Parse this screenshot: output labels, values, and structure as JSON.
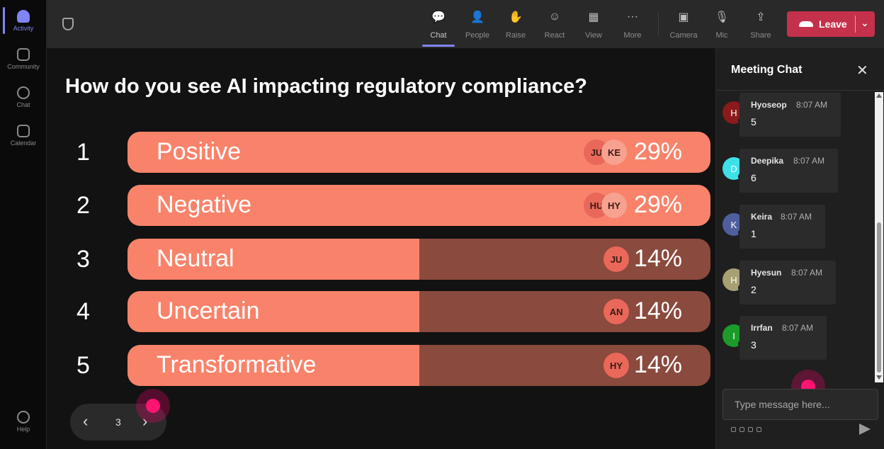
{
  "rail": {
    "items": [
      {
        "label": "Activity",
        "icon": "bell-icon"
      },
      {
        "label": "Community",
        "icon": "community-icon"
      },
      {
        "label": "Chat",
        "icon": "chat-icon"
      },
      {
        "label": "Calendar",
        "icon": "calendar-icon"
      }
    ],
    "help": {
      "label": "Help",
      "icon": "help-icon"
    }
  },
  "toolbar": {
    "buttons": [
      {
        "label": "Chat",
        "icon": "chat-icon",
        "glyph": "💬"
      },
      {
        "label": "People",
        "icon": "people-icon",
        "glyph": "👤"
      },
      {
        "label": "Raise",
        "icon": "raise-hand-icon",
        "glyph": "✋"
      },
      {
        "label": "React",
        "icon": "react-icon",
        "glyph": "☺"
      },
      {
        "label": "View",
        "icon": "view-grid-icon",
        "glyph": "▦"
      },
      {
        "label": "More",
        "icon": "more-icon",
        "glyph": "···"
      },
      {
        "label": "Camera",
        "icon": "camera-off-icon",
        "glyph": "▣"
      },
      {
        "label": "Mic",
        "icon": "mic-icon",
        "glyph": "🎙"
      },
      {
        "label": "Share",
        "icon": "share-icon",
        "glyph": "⇪"
      }
    ],
    "leave_label": "Leave"
  },
  "poll": {
    "question": "How do you see AI impacting regulatory compliance?",
    "options": [
      {
        "num": "1",
        "label": "Positive",
        "percent": "29%",
        "fraction": 1.0,
        "avatars": [
          "JU",
          "KE"
        ]
      },
      {
        "num": "2",
        "label": "Negative",
        "percent": "29%",
        "fraction": 1.0,
        "avatars": [
          "HU",
          "HY"
        ]
      },
      {
        "num": "3",
        "label": "Neutral",
        "percent": "14%",
        "fraction": 0.5,
        "avatars": [
          "JU"
        ]
      },
      {
        "num": "4",
        "label": "Uncertain",
        "percent": "14%",
        "fraction": 0.5,
        "avatars": [
          "AN"
        ]
      },
      {
        "num": "5",
        "label": "Transformative",
        "percent": "14%",
        "fraction": 0.5,
        "avatars": [
          "HY"
        ]
      }
    ]
  },
  "pager": {
    "page": "3",
    "prev_icon": "chevron-left-icon",
    "next_icon": "chevron-right-icon"
  },
  "chat": {
    "title": "Meeting Chat",
    "messages": [
      {
        "initial": "H",
        "name": "Hyoseop",
        "time": "8:07 AM",
        "text": "5",
        "color": "#8b1a1a"
      },
      {
        "initial": "D",
        "name": "Deepika",
        "time": "8:07 AM",
        "text": "6",
        "color": "#3ee0e8"
      },
      {
        "initial": "K",
        "name": "Keira",
        "time": "8:07 AM",
        "text": "1",
        "color": "#4f5f9e"
      },
      {
        "initial": "H",
        "name": "Hyesun",
        "time": "8:07 AM",
        "text": "2",
        "color": "#a8a073"
      },
      {
        "initial": "I",
        "name": "Irrfan",
        "time": "8:07 AM",
        "text": "3",
        "color": "#1c9a2a"
      }
    ],
    "placeholder": "Type message here..."
  },
  "colors": {
    "bar_fill": "#f8836a",
    "bar_track": "#8a4a3d",
    "accent": "#7f85f5",
    "leave": "#c4314b"
  }
}
